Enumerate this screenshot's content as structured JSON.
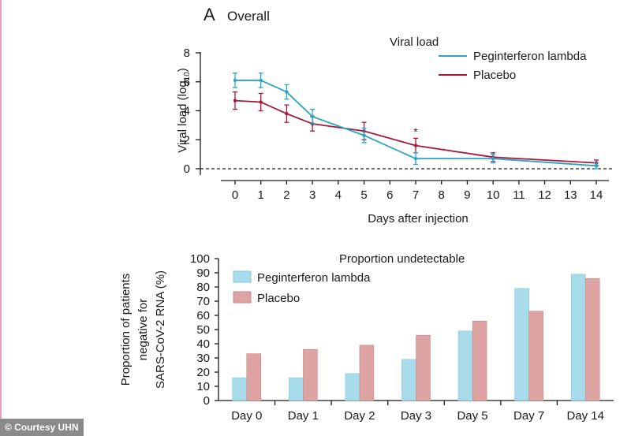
{
  "panel": {
    "letter": "A",
    "title": "Overall"
  },
  "credit": "© Courtesy UHN",
  "colors": {
    "peg": "#2aa3c6",
    "placebo": "#a8183b",
    "peg_bar": "#a8dcea",
    "placebo_bar": "#dea3a3",
    "bar_stroke_peg": "#86c6d8",
    "bar_stroke_placebo": "#c98a8a"
  },
  "chart_data": [
    {
      "type": "line",
      "title": "Viral load",
      "xlabel": "Days after injection",
      "ylabel_main": "Viral load (log",
      "ylabel_sub": "10",
      "ylabel_end": ")",
      "x_ticks": [
        0,
        1,
        2,
        3,
        4,
        5,
        6,
        7,
        8,
        9,
        10,
        11,
        12,
        13,
        14
      ],
      "y_ticks": [
        0,
        2,
        4,
        6,
        8
      ],
      "ylim": [
        0,
        8
      ],
      "xlim": [
        0,
        14
      ],
      "reference_line": 0,
      "annotation": {
        "text": "*",
        "x": 7
      },
      "series": [
        {
          "name": "Peginterferon lambda",
          "key": "peg",
          "x": [
            0,
            1,
            2,
            3,
            5,
            7,
            10,
            14
          ],
          "y": [
            6.1,
            6.1,
            5.3,
            3.6,
            2.3,
            0.7,
            0.7,
            0.2
          ],
          "err": [
            0.5,
            0.5,
            0.5,
            0.5,
            0.5,
            0.4,
            0.3,
            0.2
          ]
        },
        {
          "name": "Placebo",
          "key": "placebo",
          "x": [
            0,
            1,
            2,
            3,
            5,
            7,
            10,
            14
          ],
          "y": [
            4.7,
            4.6,
            3.8,
            3.1,
            2.6,
            1.6,
            0.8,
            0.4
          ],
          "err": [
            0.6,
            0.6,
            0.6,
            0.5,
            0.6,
            0.5,
            0.3,
            0.2
          ]
        }
      ]
    },
    {
      "type": "bar",
      "title": "Proportion undetectable",
      "ylabel_lines": [
        "Proportion of patients",
        "negative for",
        "SARS-CoV-2 RNA (%)"
      ],
      "categories": [
        "Day 0",
        "Day 1",
        "Day 2",
        "Day 3",
        "Day 5",
        "Day 7",
        "Day 14"
      ],
      "y_ticks": [
        0,
        10,
        20,
        30,
        40,
        50,
        60,
        70,
        80,
        90,
        100
      ],
      "ylim": [
        0,
        100
      ],
      "series": [
        {
          "name": "Peginterferon lambda",
          "key": "peg",
          "values": [
            16,
            16,
            19,
            29,
            49,
            79,
            89
          ]
        },
        {
          "name": "Placebo",
          "key": "placebo",
          "values": [
            33,
            36,
            39,
            46,
            56,
            63,
            86
          ]
        }
      ]
    }
  ]
}
